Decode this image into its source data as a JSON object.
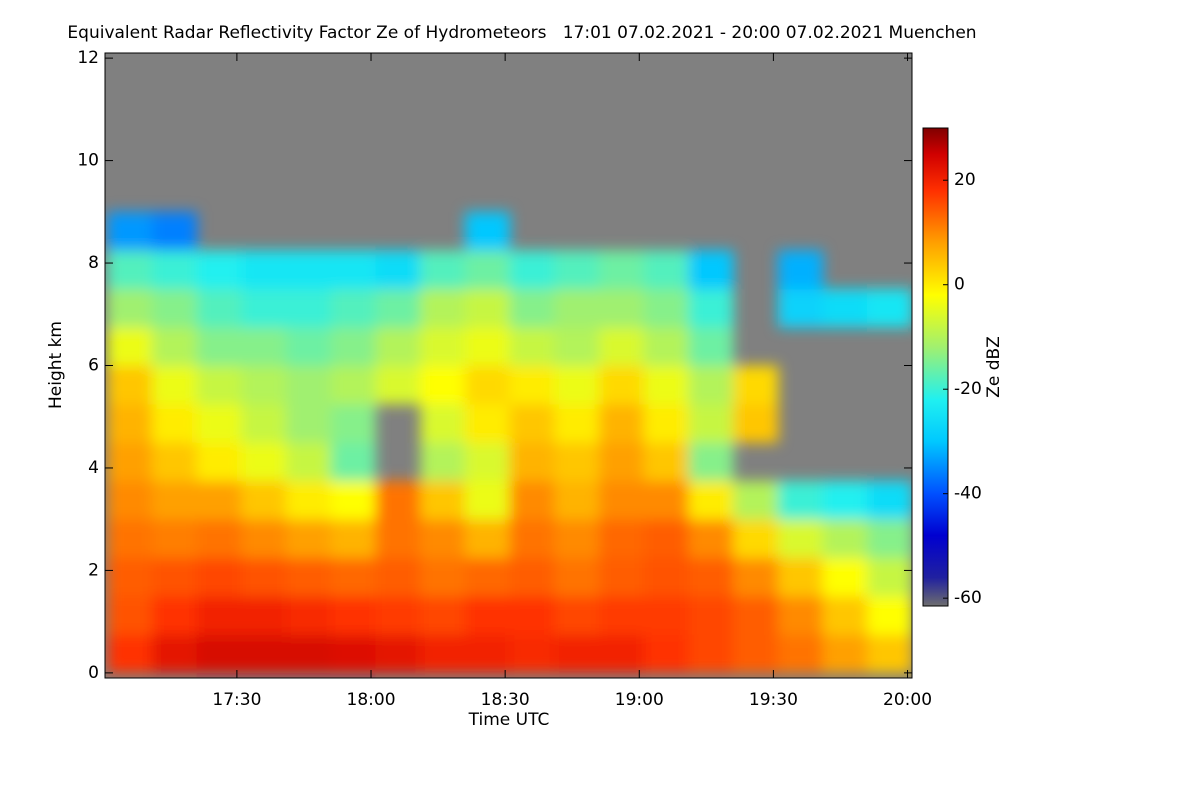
{
  "chart_data": {
    "type": "heatmap",
    "title": "Equivalent Radar Reflectivity Factor Ze of Hydrometeors   17:01 07.02.2021 - 20:00 07.02.2021 Muenchen",
    "x_label": "Time UTC",
    "y_label": "Height km",
    "colorbar_label": "Ze dBZ",
    "xlim": [
      1020.5,
      1201
    ],
    "xticks": [
      {
        "value": 1050,
        "label": "17:30"
      },
      {
        "value": 1080,
        "label": "18:00"
      },
      {
        "value": 1110,
        "label": "18:30"
      },
      {
        "value": 1140,
        "label": "19:00"
      },
      {
        "value": 1170,
        "label": "19:30"
      },
      {
        "value": 1200,
        "label": "20:00"
      }
    ],
    "ylim": [
      -0.1,
      12.1
    ],
    "yticks": [
      0,
      2,
      4,
      6,
      8,
      10,
      12
    ],
    "clim": [
      -61.5,
      30
    ],
    "cticks": [
      -60,
      -40,
      -20,
      0,
      20
    ],
    "background": "#808080",
    "colorscale": [
      {
        "value": -61.5,
        "color": "#6e6e6e"
      },
      {
        "value": -56,
        "color": "#2020a0"
      },
      {
        "value": -48,
        "color": "#0000d0"
      },
      {
        "value": -40,
        "color": "#0050ff"
      },
      {
        "value": -30,
        "color": "#00c8ff"
      },
      {
        "value": -22,
        "color": "#20f0f0"
      },
      {
        "value": -12,
        "color": "#a0f070"
      },
      {
        "value": -2,
        "color": "#ffff00"
      },
      {
        "value": 8,
        "color": "#ffa000"
      },
      {
        "value": 18,
        "color": "#ff3000"
      },
      {
        "value": 25,
        "color": "#d00000"
      },
      {
        "value": 30,
        "color": "#800000"
      }
    ],
    "x": [
      1026,
      1036,
      1046,
      1056,
      1066,
      1076,
      1086,
      1096,
      1106,
      1116,
      1126,
      1136,
      1146,
      1156,
      1166,
      1176,
      1186,
      1196
    ],
    "y": [
      0.375,
      1.125,
      1.875,
      2.625,
      3.375,
      4.125,
      4.875,
      5.625,
      6.375,
      7.125,
      7.875,
      8.625
    ],
    "z": [
      [
        18,
        22,
        24,
        24,
        24,
        23,
        22,
        20,
        20,
        19,
        20,
        20,
        18,
        16,
        14,
        12,
        8,
        4
      ],
      [
        15,
        18,
        20,
        20,
        19,
        18,
        17,
        16,
        18,
        18,
        16,
        17,
        17,
        16,
        14,
        10,
        4,
        -2
      ],
      [
        14,
        15,
        16,
        15,
        14,
        13,
        14,
        12,
        13,
        14,
        12,
        14,
        15,
        14,
        10,
        4,
        -2,
        -8
      ],
      [
        12,
        11,
        12,
        10,
        8,
        6,
        12,
        10,
        6,
        12,
        10,
        13,
        14,
        10,
        2,
        -6,
        -10,
        -14
      ],
      [
        10,
        8,
        8,
        4,
        0,
        -2,
        12,
        4,
        -4,
        10,
        6,
        10,
        10,
        0,
        -10,
        -20,
        -22,
        -26
      ],
      [
        8,
        4,
        0,
        -4,
        -8,
        -16,
        null,
        -10,
        -6,
        6,
        4,
        8,
        4,
        -14,
        null,
        null,
        null,
        null
      ],
      [
        6,
        0,
        -4,
        -8,
        -12,
        -14,
        null,
        -6,
        0,
        4,
        0,
        6,
        0,
        -8,
        4,
        null,
        null,
        null
      ],
      [
        4,
        -4,
        -8,
        -10,
        -12,
        -10,
        -6,
        -2,
        2,
        0,
        -4,
        2,
        -4,
        -10,
        2,
        null,
        null,
        null
      ],
      [
        -4,
        -10,
        -14,
        -14,
        -16,
        -14,
        -10,
        -6,
        -4,
        -8,
        -10,
        -6,
        -10,
        -16,
        null,
        null,
        null,
        null
      ],
      [
        -12,
        -14,
        -18,
        -20,
        -20,
        -18,
        -16,
        -10,
        -8,
        -14,
        -12,
        -12,
        -14,
        -20,
        null,
        -28,
        -26,
        -24
      ],
      [
        -18,
        -20,
        -22,
        -24,
        -24,
        -24,
        -26,
        -18,
        -16,
        -20,
        -18,
        -16,
        -18,
        -30,
        null,
        -32,
        null,
        null
      ],
      [
        -34,
        -36,
        null,
        null,
        null,
        null,
        null,
        null,
        -30,
        null,
        null,
        null,
        null,
        null,
        null,
        null,
        null,
        null
      ]
    ]
  }
}
